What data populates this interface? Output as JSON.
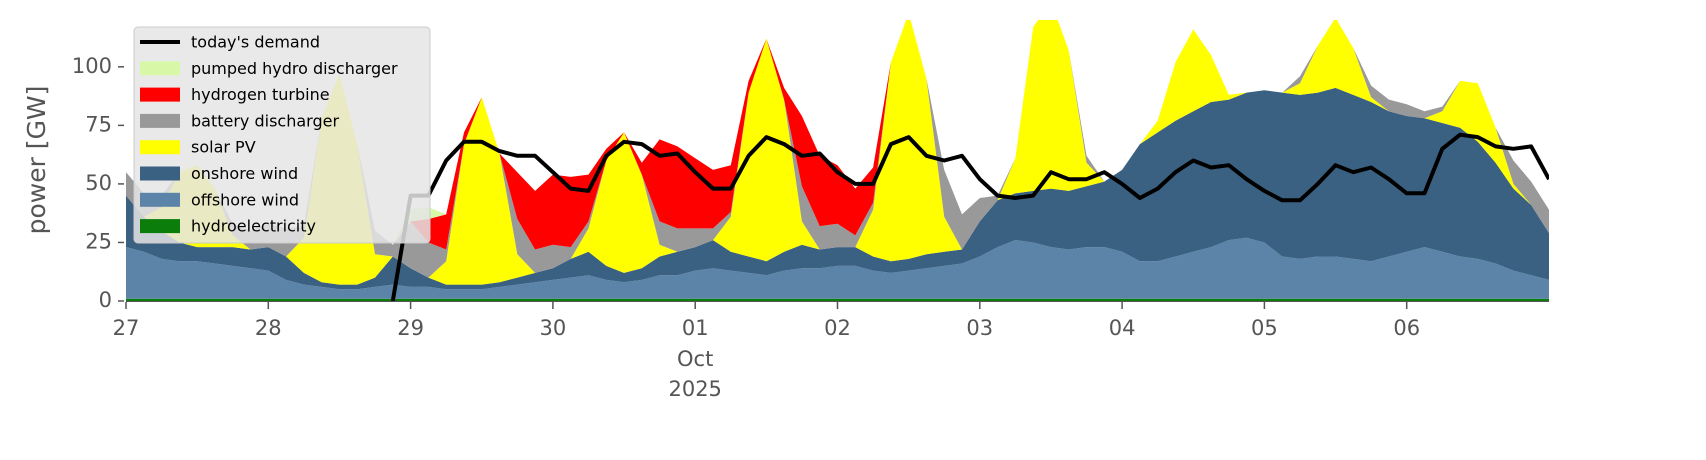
{
  "chart_data": {
    "type": "stacked_area",
    "ylabel": "power [GW]",
    "ylim": [
      0,
      120
    ],
    "yticks": [
      0,
      25,
      50,
      75,
      100
    ],
    "xlim": [
      "2025-09-27T00:00",
      "2025-10-07T00:00"
    ],
    "xticks": [
      {
        "value": "2025-09-27T00:00",
        "label": "27"
      },
      {
        "value": "2025-09-28T00:00",
        "label": "28"
      },
      {
        "value": "2025-09-29T00:00",
        "label": "29"
      },
      {
        "value": "2025-09-30T00:00",
        "label": "30"
      },
      {
        "value": "2025-10-01T00:00",
        "label": "01",
        "sublabels": [
          "Oct",
          "2025"
        ]
      },
      {
        "value": "2025-10-02T00:00",
        "label": "02"
      },
      {
        "value": "2025-10-03T00:00",
        "label": "03"
      },
      {
        "value": "2025-10-04T00:00",
        "label": "04"
      },
      {
        "value": "2025-10-05T00:00",
        "label": "05"
      },
      {
        "value": "2025-10-06T00:00",
        "label": "06"
      }
    ],
    "legend": "upper left",
    "x": [
      "2025-09-27T00:00",
      "2025-09-27T03:00",
      "2025-09-27T06:00",
      "2025-09-27T09:00",
      "2025-09-27T12:00",
      "2025-09-27T15:00",
      "2025-09-27T18:00",
      "2025-09-27T21:00",
      "2025-09-28T00:00",
      "2025-09-28T03:00",
      "2025-09-28T06:00",
      "2025-09-28T09:00",
      "2025-09-28T12:00",
      "2025-09-28T15:00",
      "2025-09-28T18:00",
      "2025-09-28T21:00",
      "2025-09-29T00:00",
      "2025-09-29T03:00",
      "2025-09-29T06:00",
      "2025-09-29T09:00",
      "2025-09-29T12:00",
      "2025-09-29T15:00",
      "2025-09-29T18:00",
      "2025-09-29T21:00",
      "2025-09-30T00:00",
      "2025-09-30T03:00",
      "2025-09-30T06:00",
      "2025-09-30T09:00",
      "2025-09-30T12:00",
      "2025-09-30T15:00",
      "2025-09-30T18:00",
      "2025-09-30T21:00",
      "2025-10-01T00:00",
      "2025-10-01T03:00",
      "2025-10-01T06:00",
      "2025-10-01T09:00",
      "2025-10-01T12:00",
      "2025-10-01T15:00",
      "2025-10-01T18:00",
      "2025-10-01T21:00",
      "2025-10-02T00:00",
      "2025-10-02T03:00",
      "2025-10-02T06:00",
      "2025-10-02T09:00",
      "2025-10-02T12:00",
      "2025-10-02T15:00",
      "2025-10-02T18:00",
      "2025-10-02T21:00",
      "2025-10-03T00:00",
      "2025-10-03T03:00",
      "2025-10-03T06:00",
      "2025-10-03T09:00",
      "2025-10-03T12:00",
      "2025-10-03T15:00",
      "2025-10-03T18:00",
      "2025-10-03T21:00",
      "2025-10-04T00:00",
      "2025-10-04T03:00",
      "2025-10-04T06:00",
      "2025-10-04T09:00",
      "2025-10-04T12:00",
      "2025-10-04T15:00",
      "2025-10-04T18:00",
      "2025-10-04T21:00",
      "2025-10-05T00:00",
      "2025-10-05T03:00",
      "2025-10-05T06:00",
      "2025-10-05T09:00",
      "2025-10-05T12:00",
      "2025-10-05T15:00",
      "2025-10-05T18:00",
      "2025-10-05T21:00",
      "2025-10-06T00:00",
      "2025-10-06T03:00",
      "2025-10-06T06:00",
      "2025-10-06T09:00",
      "2025-10-06T12:00",
      "2025-10-06T15:00",
      "2025-10-06T18:00",
      "2025-10-06T21:00",
      "2025-10-07T00:00"
    ],
    "series": [
      {
        "name": "today's demand",
        "kind": "line",
        "color": "#000000",
        "values": [
          null,
          null,
          null,
          null,
          null,
          null,
          null,
          null,
          null,
          null,
          null,
          null,
          null,
          null,
          null,
          0,
          45,
          45,
          60,
          68,
          68,
          64,
          62,
          62,
          55,
          48,
          47,
          62,
          68,
          67,
          62,
          63,
          55,
          48,
          48,
          62,
          70,
          67,
          62,
          63,
          55,
          50,
          50,
          67,
          70,
          62,
          60,
          62,
          52,
          45,
          44,
          45,
          55,
          52,
          52,
          55,
          50,
          44,
          48,
          55,
          60,
          57,
          58,
          52,
          47,
          43,
          43,
          50,
          58,
          55,
          57,
          52,
          46,
          46,
          65,
          71,
          70,
          66,
          65,
          66,
          52
        ]
      },
      {
        "name": "pumped hydro discharger",
        "color": "#d8f8a8",
        "values": [
          0,
          0,
          0,
          0,
          0,
          0,
          0,
          0,
          0,
          0,
          0,
          0,
          0,
          0,
          0,
          0,
          5,
          5,
          0,
          0,
          0,
          0,
          0,
          0,
          0,
          0,
          0,
          0,
          0,
          0,
          0,
          0,
          0,
          0,
          0,
          0,
          0,
          0,
          0,
          0,
          0,
          0,
          0,
          0,
          0,
          0,
          0,
          0,
          0,
          0,
          0,
          0,
          0,
          0,
          0,
          0,
          0,
          0,
          0,
          0,
          0,
          0,
          0,
          0,
          0,
          0,
          0,
          0,
          0,
          0,
          0,
          0,
          0,
          0,
          0,
          0,
          0,
          0,
          0,
          0,
          0
        ]
      },
      {
        "name": "hydrogen turbine",
        "color": "#ff0000",
        "values": [
          0,
          0,
          0,
          0,
          0,
          0,
          0,
          0,
          0,
          0,
          0,
          0,
          0,
          0,
          0,
          0,
          0,
          10,
          15,
          5,
          0,
          0,
          20,
          25,
          30,
          30,
          20,
          5,
          0,
          5,
          35,
          35,
          30,
          25,
          20,
          5,
          0,
          5,
          30,
          30,
          25,
          20,
          15,
          0,
          0,
          0,
          0,
          0,
          0,
          0,
          0,
          0,
          0,
          0,
          0,
          0,
          0,
          0,
          0,
          0,
          0,
          0,
          0,
          0,
          0,
          0,
          0,
          0,
          0,
          0,
          0,
          0,
          0,
          0,
          0,
          0,
          0,
          0,
          0,
          0,
          0
        ]
      },
      {
        "name": "battery discharger",
        "color": "#999999",
        "values": [
          10,
          10,
          5,
          0,
          0,
          0,
          5,
          8,
          10,
          12,
          5,
          0,
          0,
          0,
          10,
          5,
          20,
          15,
          5,
          0,
          0,
          0,
          15,
          10,
          10,
          5,
          3,
          0,
          0,
          0,
          10,
          10,
          8,
          5,
          2,
          0,
          0,
          0,
          15,
          10,
          10,
          5,
          3,
          0,
          0,
          0,
          20,
          15,
          10,
          2,
          0,
          0,
          0,
          0,
          3,
          0,
          0,
          0,
          0,
          0,
          0,
          0,
          0,
          0,
          0,
          0,
          3,
          0,
          0,
          0,
          5,
          5,
          5,
          3,
          2,
          0,
          0,
          0,
          10,
          10,
          10
        ]
      },
      {
        "name": "solar PV",
        "color": "#ffff00",
        "values": [
          0,
          0,
          10,
          30,
          35,
          25,
          5,
          0,
          0,
          0,
          15,
          70,
          90,
          60,
          10,
          0,
          0,
          0,
          10,
          60,
          80,
          55,
          10,
          0,
          0,
          0,
          10,
          45,
          60,
          40,
          5,
          0,
          0,
          0,
          15,
          70,
          95,
          65,
          10,
          0,
          0,
          0,
          20,
          85,
          105,
          75,
          15,
          0,
          0,
          0,
          15,
          70,
          80,
          60,
          10,
          0,
          0,
          0,
          5,
          25,
          35,
          20,
          2,
          0,
          0,
          0,
          5,
          20,
          30,
          20,
          2,
          0,
          0,
          0,
          5,
          20,
          25,
          15,
          2,
          0,
          0
        ]
      },
      {
        "name": "onshore wind",
        "color": "#3b6182",
        "values": [
          22,
          15,
          12,
          8,
          6,
          7,
          8,
          8,
          10,
          10,
          5,
          2,
          2,
          2,
          4,
          12,
          8,
          4,
          2,
          2,
          2,
          2,
          3,
          4,
          5,
          8,
          10,
          6,
          4,
          5,
          8,
          10,
          10,
          12,
          8,
          7,
          6,
          8,
          10,
          8,
          8,
          8,
          6,
          5,
          5,
          6,
          6,
          6,
          15,
          20,
          20,
          22,
          25,
          25,
          26,
          28,
          35,
          50,
          55,
          58,
          60,
          62,
          60,
          62,
          65,
          70,
          70,
          70,
          72,
          70,
          68,
          62,
          58,
          55,
          55,
          55,
          50,
          43,
          35,
          30,
          20
        ]
      },
      {
        "name": "offshore wind",
        "color": "#5b84a8",
        "values": [
          22,
          20,
          17,
          16,
          16,
          15,
          14,
          13,
          12,
          8,
          6,
          5,
          4,
          4,
          5,
          6,
          5,
          5,
          4,
          4,
          4,
          5,
          6,
          7,
          8,
          9,
          10,
          8,
          7,
          8,
          10,
          10,
          12,
          13,
          12,
          11,
          10,
          12,
          13,
          13,
          14,
          14,
          12,
          11,
          12,
          13,
          14,
          15,
          18,
          22,
          25,
          24,
          22,
          21,
          22,
          22,
          20,
          16,
          16,
          18,
          20,
          22,
          25,
          26,
          24,
          18,
          17,
          18,
          18,
          17,
          16,
          18,
          20,
          22,
          20,
          18,
          17,
          15,
          12,
          10,
          8
        ]
      },
      {
        "name": "hydroelectricity",
        "color": "#0b7d0b",
        "values": [
          1,
          1,
          1,
          1,
          1,
          1,
          1,
          1,
          1,
          1,
          1,
          1,
          1,
          1,
          1,
          1,
          1,
          1,
          1,
          1,
          1,
          1,
          1,
          1,
          1,
          1,
          1,
          1,
          1,
          1,
          1,
          1,
          1,
          1,
          1,
          1,
          1,
          1,
          1,
          1,
          1,
          1,
          1,
          1,
          1,
          1,
          1,
          1,
          1,
          1,
          1,
          1,
          1,
          1,
          1,
          1,
          1,
          1,
          1,
          1,
          1,
          1,
          1,
          1,
          1,
          1,
          1,
          1,
          1,
          1,
          1,
          1,
          1,
          1,
          1,
          1,
          1,
          1,
          1,
          1,
          1
        ]
      }
    ]
  }
}
